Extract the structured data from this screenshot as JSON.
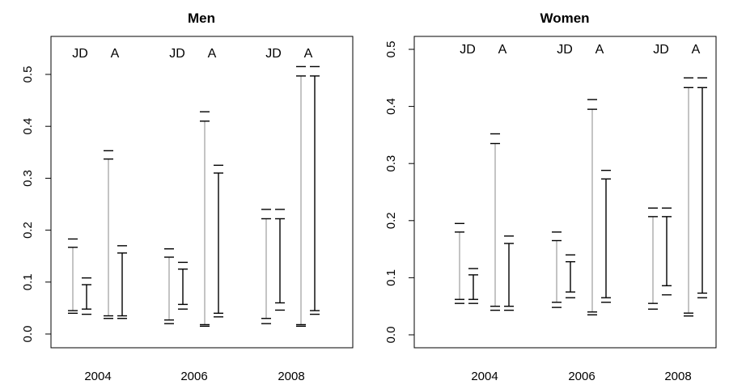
{
  "chart_data": [
    {
      "type": "interval",
      "title": "Men",
      "categories": [
        "2004",
        "2006",
        "2008"
      ],
      "group_labels": [
        "JD",
        "A"
      ],
      "yticks": [
        "0.0",
        "0.1",
        "0.2",
        "0.3",
        "0.4",
        "0.5"
      ],
      "ylim": [
        0,
        0.55
      ],
      "series_colors": {
        "outer": "#b5b5b5",
        "inner": "#000000"
      },
      "intervals": [
        {
          "year": "2004",
          "group": "JD",
          "outer": [
            0.04,
            0.183
          ],
          "inner": [
            0.045,
            0.167
          ]
        },
        {
          "year": "2004",
          "group": "JD",
          "outer": [
            0.038,
            0.108
          ],
          "inner": [
            0.048,
            0.095
          ]
        },
        {
          "year": "2004",
          "group": "A",
          "outer": [
            0.03,
            0.353
          ],
          "inner": [
            0.035,
            0.337
          ]
        },
        {
          "year": "2004",
          "group": "A",
          "outer": [
            0.03,
            0.17
          ],
          "inner": [
            0.035,
            0.156
          ]
        },
        {
          "year": "2006",
          "group": "JD",
          "outer": [
            0.02,
            0.164
          ],
          "inner": [
            0.027,
            0.148
          ]
        },
        {
          "year": "2006",
          "group": "JD",
          "outer": [
            0.048,
            0.138
          ],
          "inner": [
            0.057,
            0.125
          ]
        },
        {
          "year": "2006",
          "group": "A",
          "outer": [
            0.015,
            0.428
          ],
          "inner": [
            0.018,
            0.41
          ]
        },
        {
          "year": "2006",
          "group": "A",
          "outer": [
            0.033,
            0.325
          ],
          "inner": [
            0.04,
            0.31
          ]
        },
        {
          "year": "2008",
          "group": "JD",
          "outer": [
            0.02,
            0.24
          ],
          "inner": [
            0.03,
            0.222
          ]
        },
        {
          "year": "2008",
          "group": "JD",
          "outer": [
            0.046,
            0.24
          ],
          "inner": [
            0.06,
            0.222
          ]
        },
        {
          "year": "2008",
          "group": "A",
          "outer": [
            0.015,
            0.515
          ],
          "inner": [
            0.018,
            0.497
          ]
        },
        {
          "year": "2008",
          "group": "A",
          "outer": [
            0.038,
            0.515
          ],
          "inner": [
            0.045,
            0.497
          ]
        }
      ]
    },
    {
      "type": "interval",
      "title": "Women",
      "categories": [
        "2004",
        "2006",
        "2008"
      ],
      "group_labels": [
        "JD",
        "A"
      ],
      "yticks": [
        "0.0",
        "0.1",
        "0.2",
        "0.3",
        "0.4",
        "0.5"
      ],
      "ylim": [
        0,
        0.5
      ],
      "series_colors": {
        "outer": "#b5b5b5",
        "inner": "#000000"
      },
      "intervals": [
        {
          "year": "2004",
          "group": "JD",
          "outer": [
            0.055,
            0.195
          ],
          "inner": [
            0.062,
            0.18
          ]
        },
        {
          "year": "2004",
          "group": "JD",
          "outer": [
            0.055,
            0.116
          ],
          "inner": [
            0.062,
            0.105
          ]
        },
        {
          "year": "2004",
          "group": "A",
          "outer": [
            0.043,
            0.352
          ],
          "inner": [
            0.05,
            0.335
          ]
        },
        {
          "year": "2004",
          "group": "A",
          "outer": [
            0.043,
            0.173
          ],
          "inner": [
            0.05,
            0.16
          ]
        },
        {
          "year": "2006",
          "group": "JD",
          "outer": [
            0.048,
            0.18
          ],
          "inner": [
            0.057,
            0.165
          ]
        },
        {
          "year": "2006",
          "group": "JD",
          "outer": [
            0.065,
            0.14
          ],
          "inner": [
            0.075,
            0.128
          ]
        },
        {
          "year": "2006",
          "group": "A",
          "outer": [
            0.035,
            0.412
          ],
          "inner": [
            0.04,
            0.395
          ]
        },
        {
          "year": "2006",
          "group": "A",
          "outer": [
            0.057,
            0.288
          ],
          "inner": [
            0.065,
            0.273
          ]
        },
        {
          "year": "2008",
          "group": "JD",
          "outer": [
            0.045,
            0.222
          ],
          "inner": [
            0.055,
            0.207
          ]
        },
        {
          "year": "2008",
          "group": "JD",
          "outer": [
            0.07,
            0.222
          ],
          "inner": [
            0.086,
            0.207
          ]
        },
        {
          "year": "2008",
          "group": "A",
          "outer": [
            0.033,
            0.45
          ],
          "inner": [
            0.038,
            0.433
          ]
        },
        {
          "year": "2008",
          "group": "A",
          "outer": [
            0.065,
            0.45
          ],
          "inner": [
            0.073,
            0.433
          ]
        }
      ]
    }
  ]
}
